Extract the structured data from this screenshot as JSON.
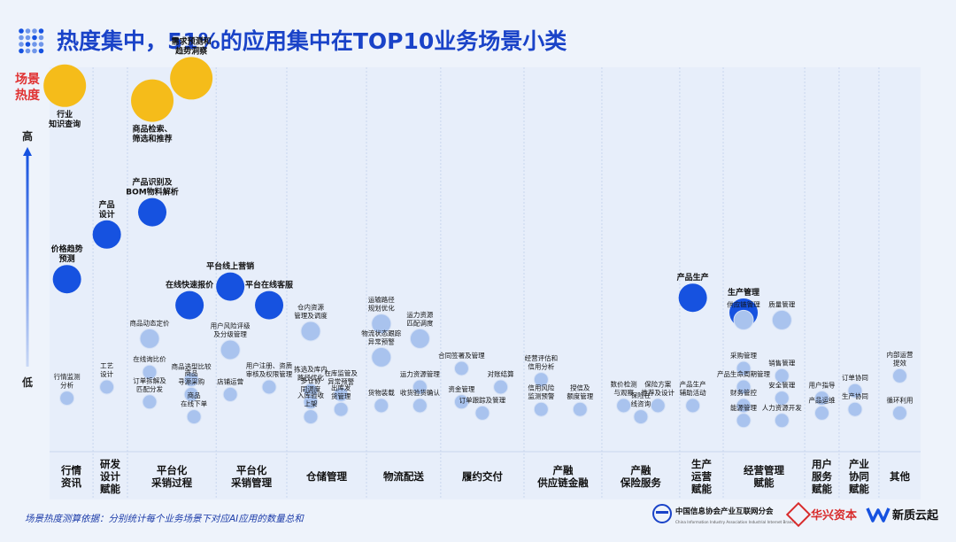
{
  "header": {
    "title": "热度集中，51%的应用集中在TOP10业务场景小类"
  },
  "axis": {
    "ylabel_line1": "场景",
    "ylabel_line2": "热度",
    "high": "高",
    "low": "低"
  },
  "footer": {
    "note": "场景热度测算依据：分别统计每个业务场景下对应AI应用的数量总和",
    "logo1_line1": "中国信息协会产业互联网分会",
    "logo1_line2": "China Information Industry Association Industrial Internet Branch",
    "logo2": "华兴资本",
    "logo3": "新质云起"
  },
  "colors": {
    "top": "#f5bc1a",
    "high": "#1652e0",
    "low": "#a9c3ee",
    "title": "#1a43c8",
    "grid": "#c8d6ee"
  },
  "chart_data": {
    "type": "scatter",
    "categories": [
      "行情\n资讯",
      "研发\n设计\n赋能",
      "平台化\n采销过程",
      "平台化\n采销管理",
      "仓储管理",
      "物流配送",
      "履约交付",
      "产融\n供应链金融",
      "产融\n保险服务",
      "生产\n运营\n赋能",
      "经营管理\n赋能",
      "用户\n服务\n赋能",
      "产业\n协同\n赋能",
      "其他"
    ],
    "points": [
      {
        "label": "行业\n知识查询",
        "category": 0,
        "heat": 0.96,
        "tier": "top",
        "slot": 0.35
      },
      {
        "label": "价格趋势\n预测",
        "category": 0,
        "heat": 0.44,
        "tier": "high",
        "slot": 0.4
      },
      {
        "label": "行情监测\n分析",
        "category": 0,
        "heat": 0.12,
        "tier": "low",
        "slot": 0.4
      },
      {
        "label": "产品\n设计",
        "category": 1,
        "heat": 0.56,
        "tier": "high",
        "slot": 0.4
      },
      {
        "label": "工艺\n设计",
        "category": 1,
        "heat": 0.15,
        "tier": "low",
        "slot": 0.4
      },
      {
        "label": "需求预测和\n趋势洞察",
        "category": 2,
        "heat": 0.98,
        "tier": "top",
        "slot": 0.72
      },
      {
        "label": "商品检索、\n筛选和推荐",
        "category": 2,
        "heat": 0.92,
        "tier": "top",
        "slot": 0.28
      },
      {
        "label": "产品识别及\nBOM物料解析",
        "category": 2,
        "heat": 0.62,
        "tier": "high",
        "slot": 0.28
      },
      {
        "label": "在线快速报价",
        "category": 2,
        "heat": 0.37,
        "tier": "high",
        "slot": 0.7
      },
      {
        "label": "商品动态定价",
        "category": 2,
        "heat": 0.28,
        "tier": "low",
        "slot": 0.25
      },
      {
        "label": "在线询比价",
        "category": 2,
        "heat": 0.19,
        "tier": "low",
        "slot": 0.25
      },
      {
        "label": "商品选型比较",
        "category": 2,
        "heat": 0.17,
        "tier": "low",
        "slot": 0.72
      },
      {
        "label": "商品\n寻源采购",
        "category": 2,
        "heat": 0.13,
        "tier": "low",
        "slot": 0.72
      },
      {
        "label": "订单拆解及\n匹配分发",
        "category": 2,
        "heat": 0.11,
        "tier": "low",
        "slot": 0.25
      },
      {
        "label": "商品\n在线下单",
        "category": 2,
        "heat": 0.07,
        "tier": "low",
        "slot": 0.75
      },
      {
        "label": "平台线上营销",
        "category": 3,
        "heat": 0.42,
        "tier": "high",
        "slot": 0.2
      },
      {
        "label": "平台在线客服",
        "category": 3,
        "heat": 0.37,
        "tier": "high",
        "slot": 0.75
      },
      {
        "label": "用户风险评级\n及分级管理",
        "category": 3,
        "heat": 0.25,
        "tier": "low",
        "slot": 0.2
      },
      {
        "label": "店铺运营",
        "category": 3,
        "heat": 0.13,
        "tier": "low",
        "slot": 0.2
      },
      {
        "label": "用户注册、资质\n审核及权限管理",
        "category": 3,
        "heat": 0.15,
        "tier": "low",
        "slot": 0.75
      },
      {
        "label": "仓内资源\n管理及调度",
        "category": 4,
        "heat": 0.3,
        "tier": "low",
        "slot": 0.3
      },
      {
        "label": "拣选及库内\n路径优化",
        "category": 4,
        "heat": 0.14,
        "tier": "low",
        "slot": 0.3
      },
      {
        "label": "多仓协\n同调度",
        "category": 4,
        "heat": 0.11,
        "tier": "low",
        "slot": 0.3
      },
      {
        "label": "入库验收\n上架",
        "category": 4,
        "heat": 0.07,
        "tier": "low",
        "slot": 0.3
      },
      {
        "label": "在库监管及\n异常预警",
        "category": 4,
        "heat": 0.13,
        "tier": "low",
        "slot": 0.68
      },
      {
        "label": "出库发\n货管理",
        "category": 4,
        "heat": 0.09,
        "tier": "low",
        "slot": 0.68
      },
      {
        "label": "运输路径\n规划优化",
        "category": 5,
        "heat": 0.32,
        "tier": "low",
        "slot": 0.2
      },
      {
        "label": "运力资源\n匹配调度",
        "category": 5,
        "heat": 0.28,
        "tier": "low",
        "slot": 0.72
      },
      {
        "label": "物流状态跟踪\n异常预警",
        "category": 5,
        "heat": 0.23,
        "tier": "low",
        "slot": 0.2
      },
      {
        "label": "运力资源管理",
        "category": 5,
        "heat": 0.15,
        "tier": "low",
        "slot": 0.72
      },
      {
        "label": "货物装载",
        "category": 5,
        "heat": 0.1,
        "tier": "low",
        "slot": 0.2
      },
      {
        "label": "收货验货确认",
        "category": 5,
        "heat": 0.1,
        "tier": "low",
        "slot": 0.72
      },
      {
        "label": "合同签署及管理",
        "category": 6,
        "heat": 0.2,
        "tier": "low",
        "slot": 0.25
      },
      {
        "label": "对账结算",
        "category": 6,
        "heat": 0.15,
        "tier": "low",
        "slot": 0.72
      },
      {
        "label": "资金管理",
        "category": 6,
        "heat": 0.11,
        "tier": "low",
        "slot": 0.25
      },
      {
        "label": "订单跟踪及管理",
        "category": 6,
        "heat": 0.08,
        "tier": "low",
        "slot": 0.5
      },
      {
        "label": "经营评估和\n信用分析",
        "category": 7,
        "heat": 0.17,
        "tier": "low",
        "slot": 0.22
      },
      {
        "label": "信用风险\n监测预警",
        "category": 7,
        "heat": 0.09,
        "tier": "low",
        "slot": 0.22
      },
      {
        "label": "授信及\n额度管理",
        "category": 7,
        "heat": 0.09,
        "tier": "low",
        "slot": 0.72
      },
      {
        "label": "数价检测\n与观察",
        "category": 8,
        "heat": 0.1,
        "tier": "low",
        "slot": 0.28
      },
      {
        "label": "保险方案\n推荐及设计",
        "category": 8,
        "heat": 0.1,
        "tier": "low",
        "slot": 0.72
      },
      {
        "label": "保险在\n线咨询",
        "category": 8,
        "heat": 0.07,
        "tier": "low",
        "slot": 0.5
      },
      {
        "label": "产品生产",
        "category": 9,
        "heat": 0.39,
        "tier": "high",
        "slot": 0.3
      },
      {
        "label": "产品生产\n辅助活动",
        "category": 9,
        "heat": 0.1,
        "tier": "low",
        "slot": 0.3
      },
      {
        "label": "生产管理",
        "category": 10,
        "heat": 0.35,
        "tier": "high",
        "slot": 0.25
      },
      {
        "label": "供应链管理",
        "category": 10,
        "heat": 0.33,
        "tier": "low",
        "slot": 0.25
      },
      {
        "label": "质量管理",
        "category": 10,
        "heat": 0.33,
        "tier": "low",
        "slot": 0.72
      },
      {
        "label": "采购管理",
        "category": 10,
        "heat": 0.2,
        "tier": "low",
        "slot": 0.25
      },
      {
        "label": "销售管理",
        "category": 10,
        "heat": 0.18,
        "tier": "low",
        "slot": 0.72
      },
      {
        "label": "产品生命周期管理",
        "category": 10,
        "heat": 0.15,
        "tier": "low",
        "slot": 0.25
      },
      {
        "label": "安全管理",
        "category": 10,
        "heat": 0.12,
        "tier": "low",
        "slot": 0.72
      },
      {
        "label": "财务管控",
        "category": 10,
        "heat": 0.1,
        "tier": "low",
        "slot": 0.25
      },
      {
        "label": "能源管理",
        "category": 10,
        "heat": 0.06,
        "tier": "low",
        "slot": 0.25
      },
      {
        "label": "人力资源开发",
        "category": 10,
        "heat": 0.06,
        "tier": "low",
        "slot": 0.72
      },
      {
        "label": "用户指导",
        "category": 11,
        "heat": 0.12,
        "tier": "low",
        "slot": 0.5
      },
      {
        "label": "产品运维",
        "category": 11,
        "heat": 0.08,
        "tier": "low",
        "slot": 0.5
      },
      {
        "label": "订单协同",
        "category": 12,
        "heat": 0.14,
        "tier": "low",
        "slot": 0.4
      },
      {
        "label": "生产协同",
        "category": 12,
        "heat": 0.09,
        "tier": "low",
        "slot": 0.4
      },
      {
        "label": "内部运营\n提效",
        "category": 13,
        "heat": 0.18,
        "tier": "low",
        "slot": 0.5
      },
      {
        "label": "循环利用",
        "category": 13,
        "heat": 0.08,
        "tier": "low",
        "slot": 0.5
      }
    ]
  }
}
